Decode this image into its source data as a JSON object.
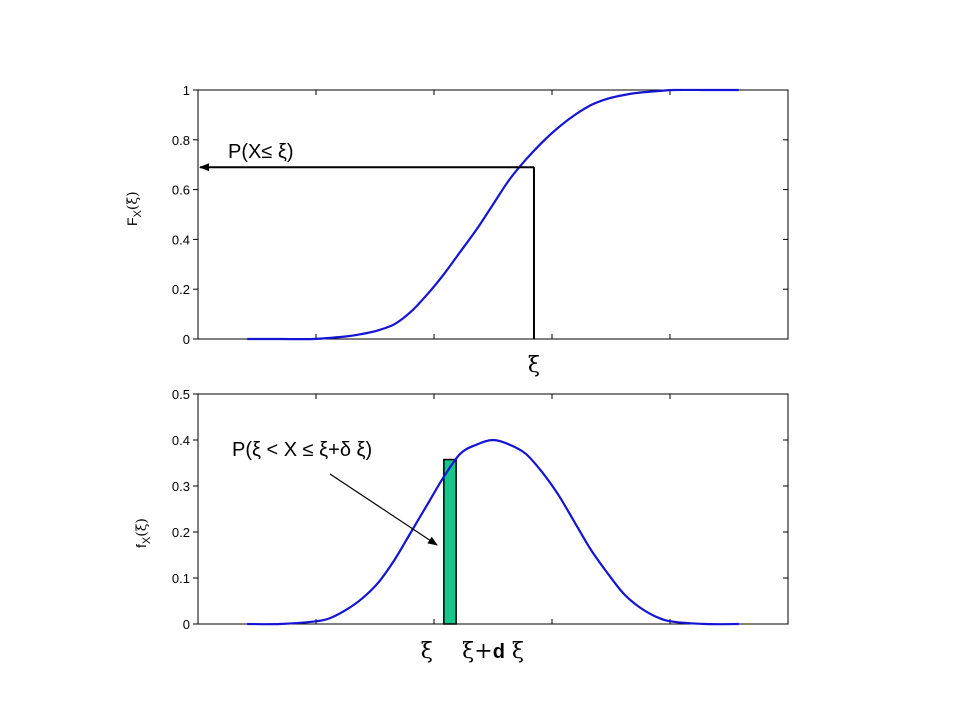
{
  "chart_data": [
    {
      "type": "line",
      "name": "cdf-chart",
      "ylabel": "F_X(ξ)",
      "ylabel_main": "F",
      "ylabel_sub": "X",
      "ylabel_arg": "(ξ)",
      "ylim": [
        0,
        1
      ],
      "yticks": [
        "0",
        "0.2",
        "0.4",
        "0.6",
        "0.8",
        "1"
      ],
      "grid": false,
      "annotation": "P(X≤ ξ)",
      "marker_label": "ξ",
      "marker_x": 0.5,
      "marker_y": 0.69,
      "series": [
        {
          "color": "#1414d2",
          "x": [
            -3.0,
            -2.6,
            -2.2,
            -1.8,
            -1.6,
            -1.4,
            -1.2,
            -1.0,
            -0.8,
            -0.6,
            -0.4,
            -0.2,
            0.0,
            0.2,
            0.4,
            0.6,
            0.8,
            1.0,
            1.2,
            1.4,
            1.6,
            1.8,
            2.0,
            2.2,
            2.6,
            3.0
          ],
          "y": [
            0.0,
            0.0,
            0.0,
            0.01,
            0.02,
            0.035,
            0.06,
            0.11,
            0.18,
            0.26,
            0.35,
            0.44,
            0.54,
            0.64,
            0.72,
            0.79,
            0.85,
            0.9,
            0.94,
            0.965,
            0.98,
            0.99,
            0.995,
            1.0,
            1.0,
            1.0
          ]
        }
      ]
    },
    {
      "type": "line",
      "name": "pdf-chart",
      "ylabel": "f_X(ξ)",
      "ylabel_main": "f",
      "ylabel_sub": "X",
      "ylabel_arg": "(ξ)",
      "ylim": [
        0,
        0.5
      ],
      "yticks": [
        "0",
        "0.1",
        "0.2",
        "0.3",
        "0.4",
        "0.5"
      ],
      "grid": false,
      "annotation": "P(ξ < X ≤ ξ+δ ξ)",
      "band_color": "#14c88c",
      "band_x": [
        -0.6,
        -0.45
      ],
      "xlabel_left": "ξ",
      "xlabel_right_a": "ξ+",
      "xlabel_right_b": "d",
      "xlabel_right_c": " ξ",
      "series": [
        {
          "color": "#1414d2",
          "x": [
            -3.0,
            -2.6,
            -2.2,
            -2.0,
            -1.8,
            -1.6,
            -1.4,
            -1.2,
            -1.0,
            -0.8,
            -0.6,
            -0.4,
            -0.2,
            0.0,
            0.2,
            0.4,
            0.6,
            0.8,
            1.0,
            1.2,
            1.4,
            1.6,
            1.8,
            2.0,
            2.2,
            2.6,
            3.0
          ],
          "y": [
            0.0,
            0.0,
            0.005,
            0.012,
            0.03,
            0.055,
            0.09,
            0.14,
            0.2,
            0.26,
            0.32,
            0.37,
            0.39,
            0.4,
            0.39,
            0.37,
            0.33,
            0.28,
            0.22,
            0.16,
            0.11,
            0.065,
            0.035,
            0.015,
            0.005,
            0.0,
            0.0
          ]
        }
      ]
    }
  ]
}
